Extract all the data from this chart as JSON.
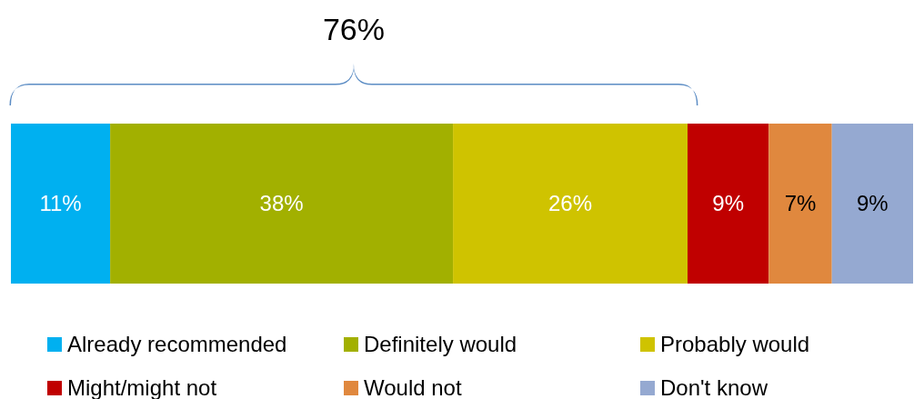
{
  "chart_data": {
    "type": "bar",
    "orientation": "horizontal",
    "stacked": true,
    "categories": [
      null
    ],
    "series": [
      {
        "name": "Already recommended",
        "color": "#00b0f0",
        "values": [
          11
        ],
        "value_labels": [
          "11%"
        ]
      },
      {
        "name": "Definitely would",
        "color": "#a2b000",
        "values": [
          38
        ],
        "value_labels": [
          "38%"
        ]
      },
      {
        "name": "Probably would",
        "color": "#cfc300",
        "values": [
          26
        ],
        "value_labels": [
          "26%"
        ]
      },
      {
        "name": "Might/might not",
        "color": "#c00000",
        "values": [
          9
        ],
        "value_labels": [
          "9%"
        ]
      },
      {
        "name": "Would not",
        "color": "#e0883e",
        "values": [
          7
        ],
        "value_labels": [
          "7%"
        ]
      },
      {
        "name": "Don't know",
        "color": "#95a9d1",
        "values": [
          9
        ],
        "value_labels": [
          "9%"
        ]
      }
    ],
    "annotations": [
      "76%"
    ],
    "legend": "bottom"
  }
}
